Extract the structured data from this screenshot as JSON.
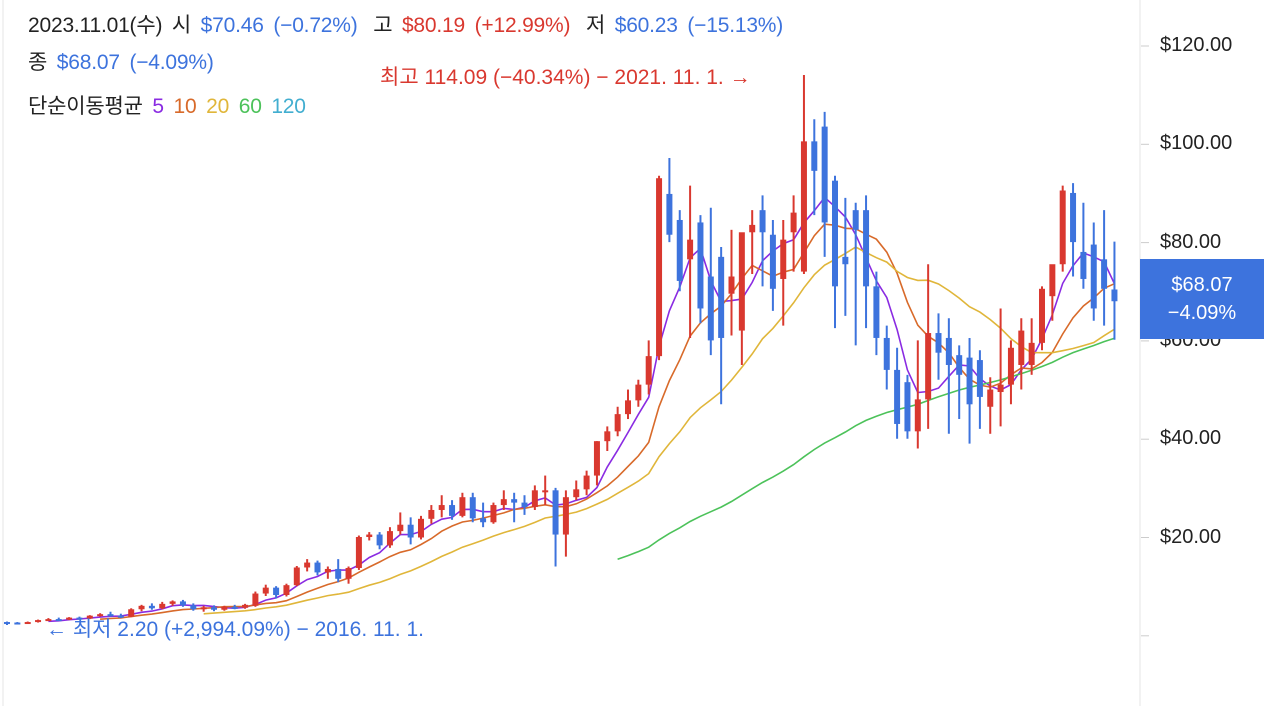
{
  "header": {
    "date": "2023.11.01(수)",
    "open_label": "시",
    "open_value": "$70.46",
    "open_change": "(−0.72%)",
    "high_label": "고",
    "high_value": "$80.19",
    "high_change": "(+12.99%)",
    "low_label": "저",
    "low_value": "$60.23",
    "low_change": "(−15.13%)",
    "close_label": "종",
    "close_value": "$68.07",
    "close_change": "(−4.09%)",
    "ma_label": "단순이동평균",
    "ma_periods": [
      "5",
      "10",
      "20",
      "60",
      "120"
    ]
  },
  "annotations": {
    "high": "최고 114.09 (−40.34%) − 2021. 11. 1. →",
    "low": "← 최저 2.20 (+2,994.09%) − 2016. 11. 1."
  },
  "price_tag": {
    "price": "$68.07",
    "change": "−4.09%"
  },
  "colors": {
    "up": "#d9382f",
    "down": "#3d73dd",
    "ma5": "#8a2be2",
    "ma10": "#d86a2a",
    "ma20": "#e0b63a",
    "ma60": "#4cc25a",
    "ma120": "#42aed0"
  },
  "chart_data": {
    "type": "candlestick",
    "interval": "monthly",
    "start": "2016.11",
    "y_ticks": [
      "$20.00",
      "$40.00",
      "$60.00",
      "$80.00",
      "$100.00",
      "$120.00"
    ],
    "y_tick_values": [
      20,
      40,
      60,
      80,
      100,
      120
    ],
    "ylim": [
      0,
      128
    ],
    "ohlc": [
      [
        2.8,
        2.9,
        2.2,
        2.7
      ],
      [
        2.7,
        2.8,
        2.4,
        2.6
      ],
      [
        2.6,
        2.9,
        2.4,
        2.8
      ],
      [
        2.8,
        3.3,
        2.7,
        3.2
      ],
      [
        3.2,
        3.6,
        3.0,
        3.4
      ],
      [
        3.4,
        3.7,
        3.1,
        3.3
      ],
      [
        3.3,
        3.8,
        3.2,
        3.7
      ],
      [
        3.7,
        3.9,
        3.3,
        3.5
      ],
      [
        3.5,
        4.2,
        3.4,
        4.1
      ],
      [
        4.1,
        4.6,
        3.9,
        4.4
      ],
      [
        4.4,
        4.9,
        3.9,
        4.1
      ],
      [
        4.1,
        4.5,
        3.6,
        3.9
      ],
      [
        3.9,
        5.6,
        3.8,
        5.4
      ],
      [
        5.4,
        6.3,
        5.0,
        6.1
      ],
      [
        6.1,
        6.6,
        5.3,
        5.6
      ],
      [
        5.6,
        6.9,
        5.4,
        6.5
      ],
      [
        6.5,
        7.2,
        6.1,
        7.0
      ],
      [
        7.0,
        7.3,
        5.9,
        6.2
      ],
      [
        6.2,
        6.6,
        5.1,
        5.4
      ],
      [
        5.4,
        6.1,
        4.9,
        5.8
      ],
      [
        5.8,
        6.2,
        5.0,
        5.3
      ],
      [
        5.3,
        6.1,
        5.1,
        5.9
      ],
      [
        5.9,
        6.3,
        5.4,
        5.7
      ],
      [
        5.7,
        6.5,
        5.5,
        6.3
      ],
      [
        6.1,
        9.0,
        5.9,
        8.6
      ],
      [
        8.6,
        10.4,
        8.1,
        9.8
      ],
      [
        9.8,
        10.1,
        7.6,
        8.3
      ],
      [
        8.3,
        10.6,
        8.0,
        10.3
      ],
      [
        10.3,
        14.2,
        10.1,
        13.9
      ],
      [
        13.9,
        15.6,
        13.1,
        14.9
      ],
      [
        14.9,
        15.3,
        12.3,
        12.9
      ],
      [
        12.9,
        14.1,
        11.6,
        13.6
      ],
      [
        13.6,
        15.6,
        10.9,
        11.6
      ],
      [
        11.6,
        14.1,
        10.6,
        13.8
      ],
      [
        13.8,
        20.4,
        13.4,
        20.1
      ],
      [
        20.1,
        21.1,
        19.4,
        20.6
      ],
      [
        20.6,
        21.1,
        17.6,
        18.4
      ],
      [
        18.4,
        22.1,
        17.9,
        21.3
      ],
      [
        21.3,
        25.1,
        20.6,
        22.6
      ],
      [
        22.6,
        24.1,
        18.6,
        20.0
      ],
      [
        20.0,
        24.4,
        19.6,
        23.8
      ],
      [
        23.8,
        26.6,
        22.8,
        25.6
      ],
      [
        25.6,
        28.6,
        24.1,
        26.6
      ],
      [
        26.6,
        27.6,
        23.6,
        24.4
      ],
      [
        24.4,
        29.1,
        24.1,
        28.2
      ],
      [
        28.2,
        29.1,
        23.1,
        23.9
      ],
      [
        23.9,
        27.1,
        22.1,
        23.1
      ],
      [
        23.1,
        27.1,
        22.8,
        26.6
      ],
      [
        26.6,
        29.6,
        25.6,
        27.8
      ],
      [
        27.8,
        29.1,
        23.1,
        27.1
      ],
      [
        27.1,
        28.6,
        24.6,
        26.2
      ],
      [
        26.2,
        30.6,
        25.6,
        29.6
      ],
      [
        29.6,
        32.6,
        26.6,
        29.6
      ],
      [
        29.6,
        30.1,
        14.1,
        20.6
      ],
      [
        20.6,
        29.6,
        16.1,
        28.2
      ],
      [
        28.2,
        31.6,
        27.6,
        29.8
      ],
      [
        29.8,
        33.6,
        28.6,
        32.6
      ],
      [
        32.6,
        39.6,
        30.6,
        39.6
      ],
      [
        39.6,
        42.6,
        37.6,
        41.6
      ],
      [
        41.6,
        46.6,
        40.6,
        45.1
      ],
      [
        45.1,
        50.1,
        44.1,
        47.9
      ],
      [
        47.9,
        52.1,
        46.6,
        51.1
      ],
      [
        51.1,
        60.1,
        49.1,
        56.9
      ],
      [
        56.9,
        93.6,
        56.1,
        93.1
      ],
      [
        89.9,
        97.2,
        80.1,
        81.6
      ],
      [
        84.6,
        86.6,
        70.1,
        72.2
      ],
      [
        76.6,
        91.6,
        60.6,
        80.6
      ],
      [
        84.1,
        85.6,
        63.6,
        66.6
      ],
      [
        73.1,
        87.1,
        57.1,
        60.1
      ],
      [
        77.1,
        79.1,
        47.1,
        60.6
      ],
      [
        69.6,
        82.6,
        61.1,
        73.1
      ],
      [
        62.1,
        81.6,
        55.1,
        82.1
      ],
      [
        82.1,
        86.6,
        73.6,
        83.6
      ],
      [
        86.6,
        89.6,
        71.1,
        82.1
      ],
      [
        81.6,
        84.6,
        66.1,
        70.6
      ],
      [
        72.6,
        84.6,
        63.1,
        80.6
      ],
      [
        82.1,
        89.6,
        74.1,
        86.1
      ],
      [
        74.1,
        114.1,
        73.6,
        100.6
      ],
      [
        100.6,
        105.1,
        85.6,
        94.6
      ],
      [
        103.6,
        106.6,
        77.1,
        84.1
      ],
      [
        92.6,
        93.6,
        62.6,
        71.1
      ],
      [
        77.1,
        89.1,
        65.1,
        75.6
      ],
      [
        86.6,
        88.1,
        59.1,
        82.6
      ],
      [
        86.6,
        89.6,
        62.6,
        71.1
      ],
      [
        71.1,
        74.1,
        57.1,
        60.6
      ],
      [
        60.6,
        63.1,
        50.1,
        54.1
      ],
      [
        54.1,
        58.6,
        40.1,
        43.1
      ],
      [
        51.6,
        53.1,
        40.1,
        41.6
      ],
      [
        41.6,
        60.1,
        38.1,
        48.1
      ],
      [
        48.1,
        75.6,
        42.1,
        61.6
      ],
      [
        61.6,
        65.6,
        52.1,
        57.6
      ],
      [
        60.6,
        64.6,
        41.1,
        55.1
      ],
      [
        57.1,
        59.1,
        44.1,
        53.1
      ],
      [
        56.6,
        60.6,
        39.1,
        47.1
      ],
      [
        56.1,
        58.1,
        42.1,
        48.6
      ],
      [
        46.6,
        52.6,
        41.1,
        50.1
      ],
      [
        49.6,
        66.6,
        42.6,
        51.1
      ],
      [
        51.1,
        60.1,
        47.1,
        58.6
      ],
      [
        55.1,
        64.6,
        50.1,
        62.1
      ],
      [
        55.1,
        64.6,
        53.1,
        59.6
      ],
      [
        59.6,
        71.1,
        58.1,
        70.6
      ],
      [
        69.1,
        74.6,
        64.1,
        75.6
      ],
      [
        75.6,
        91.6,
        74.1,
        90.6
      ],
      [
        90.1,
        92.1,
        73.1,
        80.1
      ],
      [
        78.1,
        88.1,
        70.6,
        72.6
      ],
      [
        79.6,
        84.1,
        64.1,
        66.6
      ],
      [
        76.6,
        86.6,
        63.1,
        70.6
      ],
      [
        70.46,
        80.19,
        60.23,
        68.07
      ]
    ],
    "ma_period_values": [
      5,
      10,
      20,
      60
    ]
  }
}
